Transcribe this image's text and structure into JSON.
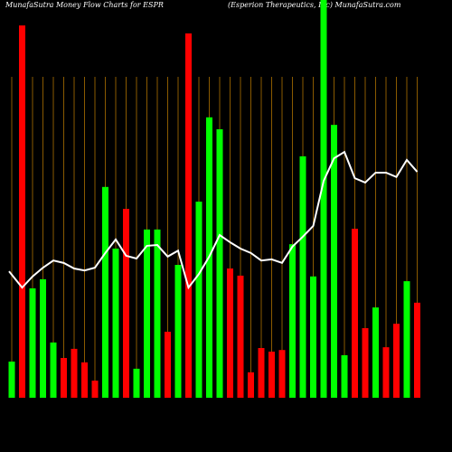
{
  "chart_data": {
    "type": "bar",
    "title": "MunafaSutra  Money Flow  Charts for ESPR",
    "subtitle": "(Esperion  Therapeutics,  Inc) MunafaSutra.com",
    "categories": [
      null,
      null,
      null,
      null,
      null,
      null,
      null,
      null,
      null,
      null,
      null,
      null,
      null,
      null,
      null,
      null,
      null,
      null,
      null,
      null,
      null,
      null,
      null,
      null,
      null,
      null,
      null,
      null,
      null,
      null,
      null,
      null,
      null,
      null,
      null,
      null,
      null,
      null,
      null,
      null
    ],
    "ylim": [
      0,
      100
    ],
    "series": [
      {
        "kind": "bar",
        "colors": [
          "#00ff00",
          "#ff0000",
          "#00ff00",
          "#00ff00",
          "#00ff00",
          "#ff0000",
          "#ff0000",
          "#ff0000",
          "#ff0000",
          "#00ff00",
          "#00ff00",
          "#ff0000",
          "#00ff00",
          "#00ff00",
          "#00ff00",
          "#ff0000",
          "#00ff00",
          "#ff0000",
          "#00ff00",
          "#00ff00",
          "#00ff00",
          "#ff0000",
          "#ff0000",
          "#ff0000",
          "#ff0000",
          "#ff0000",
          "#ff0000",
          "#00ff00",
          "#00ff00",
          "#00ff00",
          "#00ff00",
          "#00ff00",
          "#00ff00",
          "#ff0000",
          "#ff0000",
          "#00ff00",
          "#ff0000",
          "#ff0000",
          "#00ff00",
          "#ff0000"
        ],
        "values": [
          9.1,
          93.6,
          27.5,
          29.8,
          13.9,
          10.0,
          12.3,
          8.9,
          4.3,
          53.0,
          37.5,
          47.5,
          7.3,
          42.3,
          42.3,
          16.6,
          33.4,
          91.6,
          49.3,
          70.5,
          67.5,
          32.5,
          30.7,
          6.4,
          12.5,
          11.6,
          12.0,
          38.6,
          60.7,
          30.5,
          100,
          68.6,
          10.7,
          42.5,
          17.5,
          22.7,
          12.7,
          18.6,
          29.3,
          23.9
        ]
      },
      {
        "kind": "line",
        "color": "#ffffff",
        "values": [
          31.8,
          27.7,
          30.5,
          32.7,
          34.5,
          33.9,
          32.5,
          32.0,
          32.7,
          36.4,
          39.8,
          35.7,
          35.0,
          38.2,
          38.4,
          35.5,
          37.0,
          27.7,
          31.1,
          35.5,
          40.9,
          39.1,
          37.5,
          36.4,
          34.5,
          34.8,
          33.9,
          38.0,
          40.5,
          43.2,
          54.5,
          60.2,
          61.8,
          55.2,
          54.1,
          56.6,
          56.6,
          55.5,
          59.8,
          56.8
        ]
      }
    ]
  }
}
